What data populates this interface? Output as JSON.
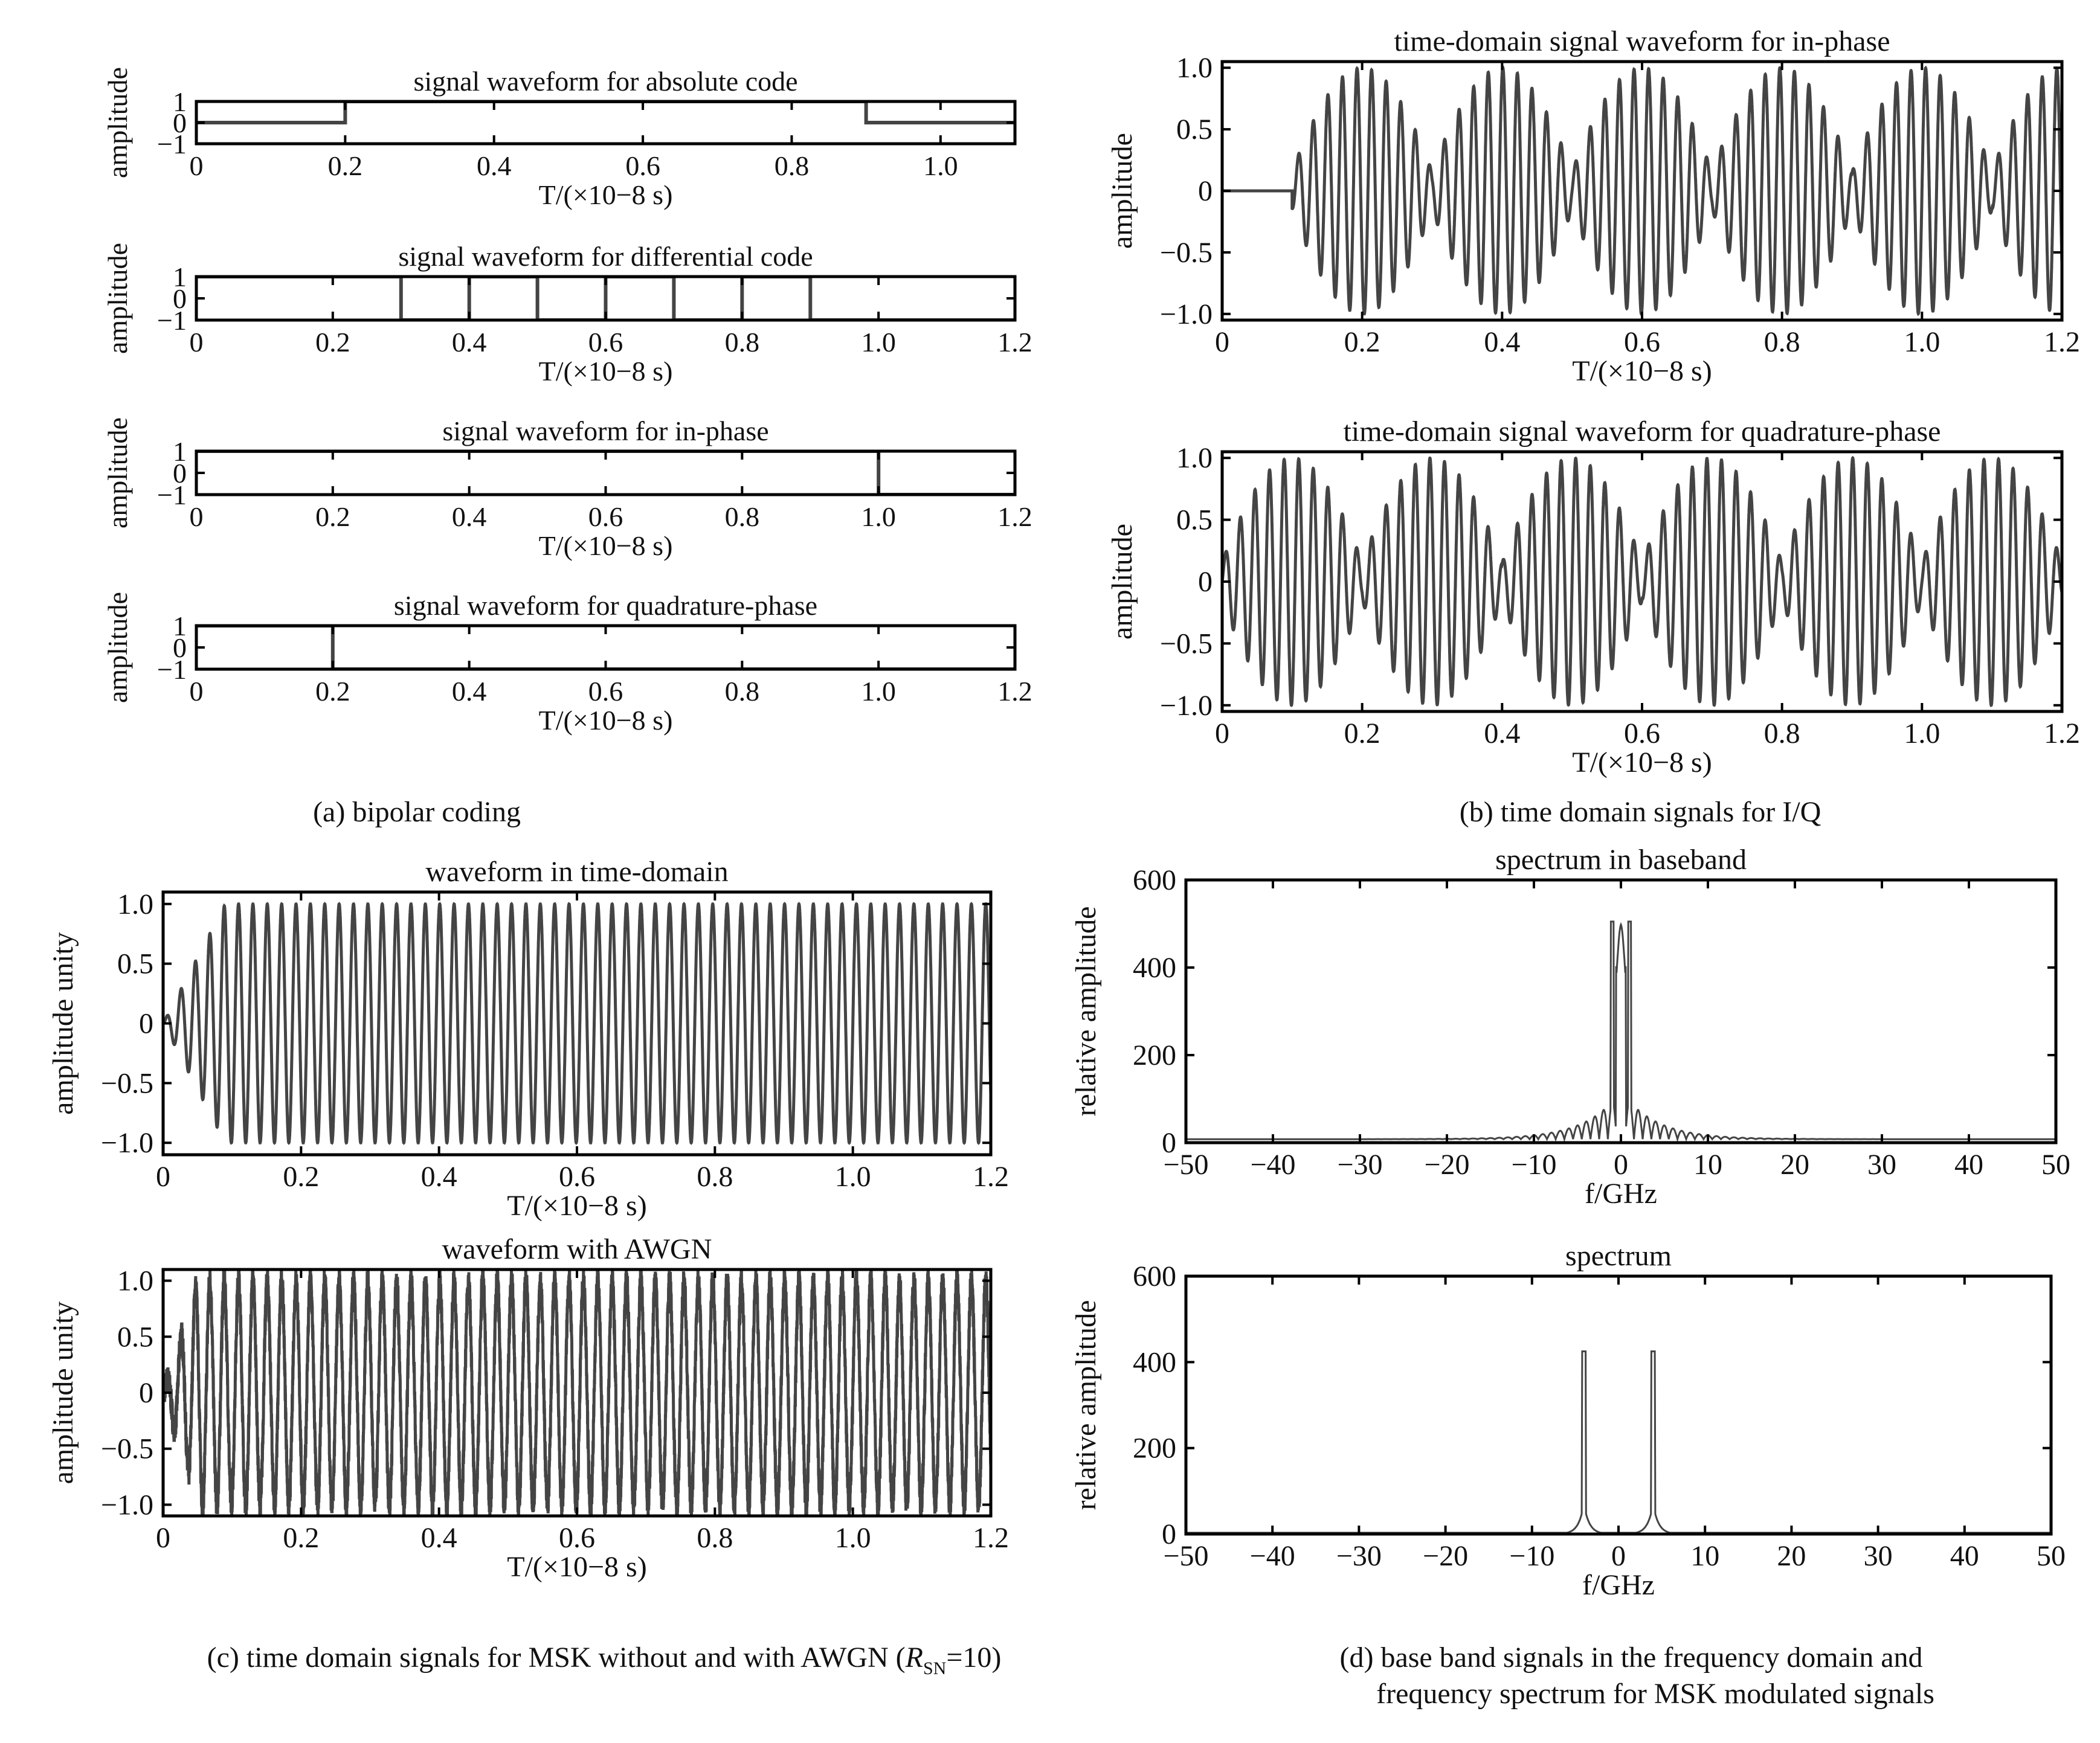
{
  "colors": {
    "trace": "#444444",
    "axis": "#000000",
    "text": "#111111"
  },
  "captions": {
    "a": "(a) bipolar coding",
    "b": "(b) time domain signals for I/Q",
    "c_pre": "(c) time domain signals for MSK without and with AWGN (",
    "c_var": "R",
    "c_sub": "SN",
    "c_post": "=10)",
    "d_line1": "(d) base band signals in the frequency domain and",
    "d_line2": "frequency spectrum for MSK modulated signals"
  },
  "chart_data": [
    {
      "id": "a1",
      "type": "line",
      "title": "signal waveform for absolute code",
      "xlabel": "T/(×10−8 s)",
      "ylabel": "amplitude",
      "xlim": [
        0,
        1.1
      ],
      "ylim": [
        -1,
        1
      ],
      "xticks": [
        0,
        0.2,
        0.4,
        0.6,
        0.8,
        1.0
      ],
      "xtick_labels": [
        "0",
        "0.2",
        "0.4",
        "0.6",
        "0.8",
        "1.0"
      ],
      "yticks": [
        1,
        0,
        -1
      ],
      "ytick_labels": [
        "1",
        "0",
        "−1"
      ],
      "x": [
        0,
        0.2,
        0.2,
        0.9,
        0.9,
        1.1
      ],
      "y": [
        0,
        0,
        1,
        1,
        0,
        0
      ]
    },
    {
      "id": "a2",
      "type": "line",
      "title": "signal waveform for differential code",
      "xlabel": "T/(×10−8 s)",
      "ylabel": "amplitude",
      "xlim": [
        0,
        1.2
      ],
      "ylim": [
        -1,
        1
      ],
      "xticks": [
        0,
        0.2,
        0.4,
        0.6,
        0.8,
        1.0,
        1.2
      ],
      "xtick_labels": [
        "0",
        "0.2",
        "0.4",
        "0.6",
        "0.8",
        "1.0",
        "1.2"
      ],
      "yticks": [
        1,
        0,
        -1
      ],
      "ytick_labels": [
        "1",
        "0",
        "−1"
      ],
      "x": [
        0,
        0.3,
        0.3,
        0.4,
        0.4,
        0.5,
        0.5,
        0.6,
        0.6,
        0.7,
        0.7,
        0.8,
        0.8,
        0.9,
        0.9,
        1.2
      ],
      "y": [
        1,
        1,
        -1,
        -1,
        1,
        1,
        -1,
        -1,
        1,
        1,
        -1,
        -1,
        1,
        1,
        -1,
        -1
      ]
    },
    {
      "id": "a3",
      "type": "line",
      "title": "signal waveform for in-phase",
      "xlabel": "T/(×10−8 s)",
      "ylabel": "amplitude",
      "xlim": [
        0,
        1.2
      ],
      "ylim": [
        -1,
        1
      ],
      "xticks": [
        0,
        0.2,
        0.4,
        0.6,
        0.8,
        1.0,
        1.2
      ],
      "xtick_labels": [
        "0",
        "0.2",
        "0.4",
        "0.6",
        "0.8",
        "1.0",
        "1.2"
      ],
      "yticks": [
        1,
        0,
        -1
      ],
      "ytick_labels": [
        "1",
        "0",
        "−1"
      ],
      "x": [
        0,
        1.0,
        1.0,
        1.2
      ],
      "y": [
        1,
        1,
        -1,
        -1
      ]
    },
    {
      "id": "a4",
      "type": "line",
      "title": "signal waveform for quadrature-phase",
      "xlabel": "T/(×10−8 s)",
      "ylabel": "amplitude",
      "xlim": [
        0,
        1.2
      ],
      "ylim": [
        -1,
        1
      ],
      "xticks": [
        0,
        0.2,
        0.4,
        0.6,
        0.8,
        1.0,
        1.2
      ],
      "xtick_labels": [
        "0",
        "0.2",
        "0.4",
        "0.6",
        "0.8",
        "1.0",
        "1.2"
      ],
      "yticks": [
        1,
        0,
        -1
      ],
      "ytick_labels": [
        "1",
        "0",
        "−1"
      ],
      "x": [
        0,
        0.2,
        0.2,
        1.2
      ],
      "y": [
        1,
        1,
        -1,
        -1
      ]
    },
    {
      "id": "b1",
      "type": "line",
      "title": "time-domain signal waveform for in-phase",
      "xlabel": "T/(×10−8 s)",
      "ylabel": "amplitude",
      "xlim": [
        0,
        1.2
      ],
      "ylim": [
        -1.05,
        1.05
      ],
      "xticks": [
        0,
        0.2,
        0.4,
        0.6,
        0.8,
        1.0,
        1.2
      ],
      "xtick_labels": [
        "0",
        "0.2",
        "0.4",
        "0.6",
        "0.8",
        "1.0",
        "1.2"
      ],
      "yticks": [
        1,
        0.5,
        0,
        -0.5,
        -1
      ],
      "ytick_labels": [
        "1.0",
        "0.5",
        "0",
        "−0.5",
        "−1.0"
      ],
      "signal": {
        "kind": "envelope",
        "carrier_cycles_per_unit": 48,
        "envelope_period": 0.2,
        "envelope_phase": 0.1,
        "start": 0.1
      }
    },
    {
      "id": "b2",
      "type": "line",
      "title": "time-domain signal waveform for quadrature-phase",
      "xlabel": "T/(×10−8 s)",
      "ylabel": "amplitude",
      "xlim": [
        0,
        1.2
      ],
      "ylim": [
        -1.05,
        1.05
      ],
      "xticks": [
        0,
        0.2,
        0.4,
        0.6,
        0.8,
        1.0,
        1.2
      ],
      "xtick_labels": [
        "0",
        "0.2",
        "0.4",
        "0.6",
        "0.8",
        "1.0",
        "1.2"
      ],
      "yticks": [
        1,
        0.5,
        0,
        -0.5,
        -1
      ],
      "ytick_labels": [
        "1.0",
        "0.5",
        "0",
        "−0.5",
        "−1.0"
      ],
      "signal": {
        "kind": "envelope",
        "carrier_cycles_per_unit": 48,
        "envelope_period": 0.2,
        "envelope_phase": 0.0,
        "start": 0.0
      }
    },
    {
      "id": "c1",
      "type": "line",
      "title": "waveform in time-domain",
      "xlabel": "T/(×10−8 s)",
      "ylabel": "amplitude unity",
      "xlim": [
        0,
        1.2
      ],
      "ylim": [
        -1.1,
        1.1
      ],
      "xticks": [
        0,
        0.2,
        0.4,
        0.6,
        0.8,
        1.0,
        1.2
      ],
      "xtick_labels": [
        "0",
        "0.2",
        "0.4",
        "0.6",
        "0.8",
        "1.0",
        "1.2"
      ],
      "yticks": [
        1,
        0.5,
        0,
        -0.5,
        -1
      ],
      "ytick_labels": [
        "1.0",
        "0.5",
        "0",
        "−0.5",
        "−1.0"
      ],
      "signal": {
        "kind": "carrier",
        "carrier_cycles_per_unit": 48,
        "rise": 0.09,
        "noise": 0
      }
    },
    {
      "id": "c2",
      "type": "line",
      "title": "waveform with AWGN",
      "xlabel": "T/(×10−8 s)",
      "ylabel": "amplitude unity",
      "xlim": [
        0,
        1.2
      ],
      "ylim": [
        -1.1,
        1.1
      ],
      "xticks": [
        0,
        0.2,
        0.4,
        0.6,
        0.8,
        1.0,
        1.2
      ],
      "xtick_labels": [
        "0",
        "0.2",
        "0.4",
        "0.6",
        "0.8",
        "1.0",
        "1.2"
      ],
      "yticks": [
        1,
        0.5,
        0,
        -0.5,
        -1
      ],
      "ytick_labels": [
        "1.0",
        "0.5",
        "0",
        "−0.5",
        "−1.0"
      ],
      "signal": {
        "kind": "carrier",
        "carrier_cycles_per_unit": 48,
        "rise": 0.05,
        "noise": 0.25
      }
    },
    {
      "id": "d1",
      "type": "line",
      "title": "spectrum in baseband",
      "xlabel": "f/GHz",
      "ylabel": "relative amplitude",
      "xlim": [
        -50,
        50
      ],
      "ylim": [
        0,
        600
      ],
      "xticks": [
        -50,
        -40,
        -30,
        -20,
        -10,
        0,
        10,
        20,
        30,
        40,
        50
      ],
      "xtick_labels": [
        "−50",
        "−40",
        "−30",
        "−20",
        "−10",
        "0",
        "10",
        "20",
        "30",
        "40",
        "50"
      ],
      "yticks": [
        600,
        400,
        200,
        0
      ],
      "ytick_labels": [
        "600",
        "400",
        "200",
        "0"
      ],
      "spectrum": {
        "kind": "baseband",
        "peaks": [
          -1,
          1
        ],
        "peak_value": 505,
        "center_value": 380,
        "sidelobe_spacing": 1
      }
    },
    {
      "id": "d2",
      "type": "line",
      "title": "spectrum",
      "xlabel": "f/GHz",
      "ylabel": "relative amplitude",
      "xlim": [
        -50,
        50
      ],
      "ylim": [
        0,
        600
      ],
      "xticks": [
        -50,
        -40,
        -30,
        -20,
        -10,
        0,
        10,
        20,
        30,
        40,
        50
      ],
      "xtick_labels": [
        "−50",
        "−40",
        "−30",
        "−20",
        "−10",
        "0",
        "10",
        "20",
        "30",
        "40",
        "50"
      ],
      "yticks": [
        600,
        400,
        200,
        0
      ],
      "ytick_labels": [
        "600",
        "400",
        "200",
        "0"
      ],
      "spectrum": {
        "kind": "carrier",
        "peaks": [
          -4,
          4
        ],
        "peak_value": 425
      }
    }
  ]
}
